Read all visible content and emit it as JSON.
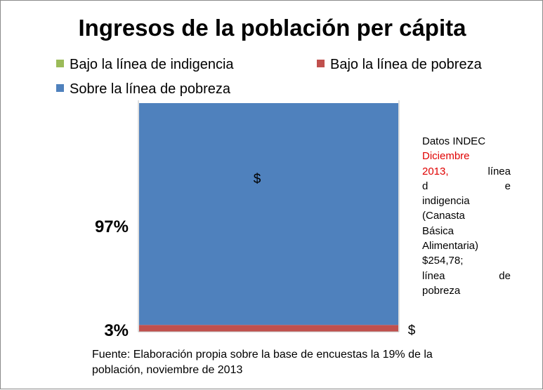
{
  "chart_data": {
    "type": "bar",
    "stacked": true,
    "title": "Ingresos de la población per cápita",
    "categories": [
      ""
    ],
    "series": [
      {
        "name": "Bajo la línea de indigencia",
        "values": [
          0
        ],
        "color": "#9bbb59",
        "label": ""
      },
      {
        "name": "Bajo la línea de pobreza",
        "values": [
          3
        ],
        "color": "#c0504d",
        "label": "$"
      },
      {
        "name": "Sobre la línea de pobreza",
        "values": [
          97
        ],
        "color": "#4f81bd",
        "label": "$"
      }
    ],
    "ylim": [
      0,
      100
    ],
    "percent_labels": [
      "97%",
      "3%"
    ],
    "legend_position": "top",
    "grid": false
  },
  "notes": {
    "lines": [
      {
        "parts": [
          {
            "text": "Datos INDEC",
            "red": false
          }
        ],
        "align": "left"
      },
      {
        "parts": [
          {
            "text": "Diciembre",
            "red": true
          }
        ],
        "align": "justify"
      },
      {
        "parts": [
          {
            "text": "2013,",
            "red": true
          },
          {
            "text": " línea",
            "red": false
          }
        ],
        "align": "justify"
      },
      {
        "parts": [
          {
            "text": "d e",
            "red": false
          }
        ],
        "align": "justify"
      },
      {
        "parts": [
          {
            "text": "indigencia",
            "red": false
          }
        ],
        "align": "justify"
      },
      {
        "parts": [
          {
            "text": "(Canasta",
            "red": false
          }
        ],
        "align": "justify"
      },
      {
        "parts": [
          {
            "text": "Básica",
            "red": false
          }
        ],
        "align": "justify"
      },
      {
        "parts": [
          {
            "text": "Alimentaria)",
            "red": false
          }
        ],
        "align": "justify"
      },
      {
        "parts": [
          {
            "text": "$254,78;",
            "red": false
          }
        ],
        "align": "justify"
      },
      {
        "parts": [
          {
            "text": "línea de",
            "red": false
          }
        ],
        "align": "justify"
      },
      {
        "parts": [
          {
            "text": "pobreza",
            "red": false
          }
        ],
        "align": "justify"
      }
    ]
  },
  "source": "Fuente: Elaboración propia sobre la base de encuestas la 19% de la población, noviembre de 2013"
}
